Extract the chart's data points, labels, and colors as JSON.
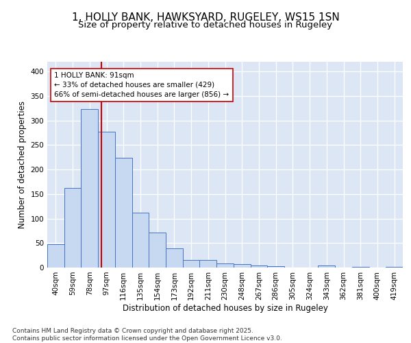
{
  "title_line1": "1, HOLLY BANK, HAWKSYARD, RUGELEY, WS15 1SN",
  "title_line2": "Size of property relative to detached houses in Rugeley",
  "xlabel": "Distribution of detached houses by size in Rugeley",
  "ylabel": "Number of detached properties",
  "categories": [
    "40sqm",
    "59sqm",
    "78sqm",
    "97sqm",
    "116sqm",
    "135sqm",
    "154sqm",
    "173sqm",
    "192sqm",
    "211sqm",
    "230sqm",
    "248sqm",
    "267sqm",
    "286sqm",
    "305sqm",
    "324sqm",
    "343sqm",
    "362sqm",
    "381sqm",
    "400sqm",
    "419sqm"
  ],
  "values": [
    48,
    162,
    323,
    277,
    224,
    112,
    72,
    39,
    15,
    15,
    9,
    7,
    4,
    3,
    0,
    0,
    4,
    0,
    2,
    0,
    1
  ],
  "bar_color": "#c6d9f0",
  "bar_edge_color": "#4472c4",
  "vline_color": "#cc0000",
  "annotation_text": "1 HOLLY BANK: 91sqm\n← 33% of detached houses are smaller (429)\n66% of semi-detached houses are larger (856) →",
  "annotation_box_color": "#ffffff",
  "annotation_box_edge": "#cc0000",
  "footer_text": "Contains HM Land Registry data © Crown copyright and database right 2025.\nContains public sector information licensed under the Open Government Licence v3.0.",
  "background_color": "#dce6f5",
  "ylim": [
    0,
    420
  ],
  "yticks": [
    0,
    50,
    100,
    150,
    200,
    250,
    300,
    350,
    400
  ],
  "title_fontsize": 11,
  "subtitle_fontsize": 9.5,
  "axis_label_fontsize": 8.5,
  "tick_fontsize": 7.5,
  "footer_fontsize": 6.5
}
